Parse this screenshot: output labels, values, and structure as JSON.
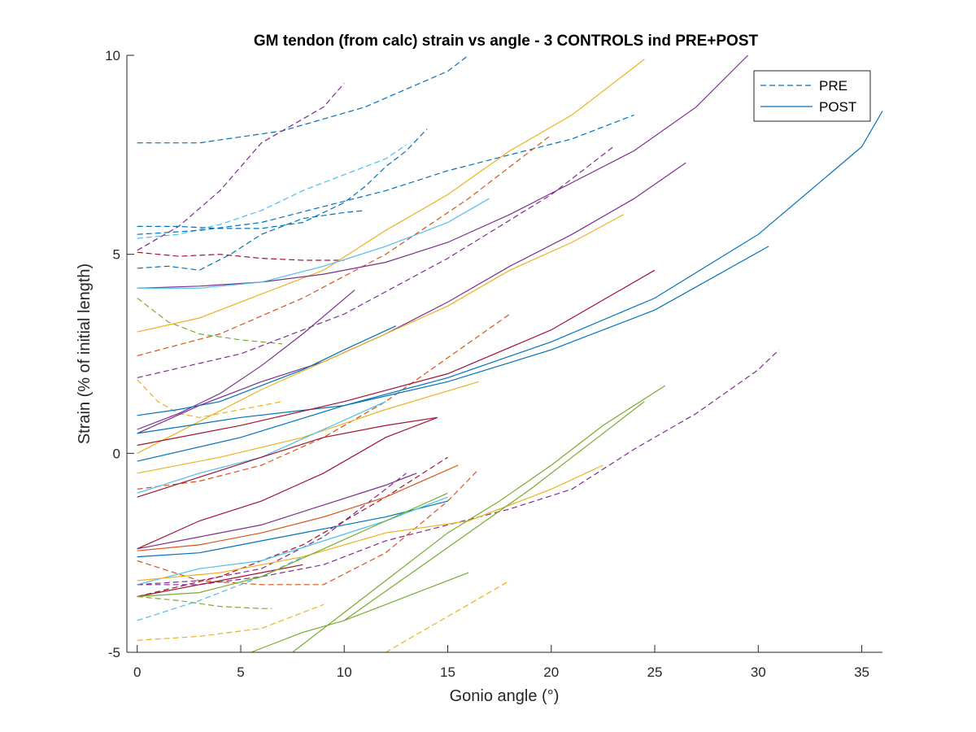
{
  "chart_data": {
    "type": "line",
    "title": "GM tendon (from calc) strain vs angle - 3 CONTROLS ind PRE+POST",
    "xlabel": "Gonio angle (°)",
    "ylabel": "Strain (% of initial length)",
    "xlim": [
      -0.5,
      36
    ],
    "ylim": [
      -5,
      10
    ],
    "xticks": [
      0,
      5,
      10,
      15,
      20,
      25,
      30,
      35
    ],
    "yticks": [
      -5,
      0,
      5,
      10
    ],
    "grid": false,
    "legend": {
      "placement": "top-right",
      "entries": [
        {
          "label": "PRE",
          "style": "dashed"
        },
        {
          "label": "POST",
          "style": "solid"
        }
      ]
    },
    "colors": {
      "blue": "#0072BD",
      "orange": "#D95319",
      "yellow": "#EDB120",
      "purple": "#7E2F8E",
      "green": "#77AC30",
      "cyan": "#4DBEEE",
      "darkred": "#A2142F"
    },
    "series": [
      {
        "style": "dashed",
        "color": "#0072BD",
        "x": [
          0,
          3,
          5,
          7,
          9,
          11,
          13,
          15,
          16
        ],
        "y": [
          7.8,
          7.8,
          7.95,
          8.1,
          8.4,
          8.7,
          9.15,
          9.6,
          10
        ]
      },
      {
        "style": "dashed",
        "color": "#7E2F8E",
        "x": [
          0,
          2,
          4,
          6,
          8,
          9,
          10
        ],
        "y": [
          5.1,
          5.7,
          6.6,
          7.8,
          8.4,
          8.7,
          9.3
        ]
      },
      {
        "style": "dashed",
        "color": "#0072BD",
        "x": [
          0,
          2,
          4,
          6,
          8,
          10,
          11,
          12,
          13,
          14
        ],
        "y": [
          5.7,
          5.7,
          5.65,
          5.65,
          5.8,
          6.3,
          6.7,
          7.2,
          7.6,
          8.15
        ]
      },
      {
        "style": "dashed",
        "color": "#4DBEEE",
        "x": [
          0,
          2,
          4,
          6,
          8,
          10,
          12,
          13
        ],
        "y": [
          5.4,
          5.5,
          5.75,
          6.1,
          6.6,
          7.0,
          7.4,
          7.75
        ]
      },
      {
        "style": "dashed",
        "color": "#0072BD",
        "x": [
          0,
          3,
          6,
          9,
          12,
          15,
          18,
          21,
          24
        ],
        "y": [
          5.5,
          5.6,
          5.8,
          6.2,
          6.6,
          7.1,
          7.5,
          7.9,
          8.5
        ]
      },
      {
        "style": "dashed",
        "color": "#0072BD",
        "x": [
          0,
          1.5,
          3,
          4.5,
          6,
          8,
          10,
          11
        ],
        "y": [
          4.65,
          4.7,
          4.6,
          5.0,
          5.5,
          5.9,
          6.05,
          6.1
        ]
      },
      {
        "style": "dashed",
        "color": "#A2142F",
        "x": [
          0,
          2,
          4,
          6,
          8,
          10
        ],
        "y": [
          5.05,
          4.95,
          5.0,
          4.9,
          4.85,
          4.85
        ]
      },
      {
        "style": "dashed",
        "color": "#D95319",
        "x": [
          0,
          4,
          8,
          12,
          16,
          20
        ],
        "y": [
          2.45,
          3.0,
          3.9,
          5.0,
          6.4,
          8.0
        ]
      },
      {
        "style": "dashed",
        "color": "#7E2F8E",
        "x": [
          0,
          5,
          10,
          15,
          20,
          23
        ],
        "y": [
          1.9,
          2.5,
          3.5,
          4.9,
          6.5,
          7.7
        ]
      },
      {
        "style": "dashed",
        "color": "#77AC30",
        "x": [
          0,
          1.5,
          3,
          5,
          7
        ],
        "y": [
          3.9,
          3.3,
          3.0,
          2.85,
          2.75
        ]
      },
      {
        "style": "dashed",
        "color": "#EDB120",
        "x": [
          0,
          1,
          2,
          3,
          5,
          7
        ],
        "y": [
          1.85,
          1.3,
          1.0,
          0.9,
          1.1,
          1.3
        ]
      },
      {
        "style": "dashed",
        "color": "#D95319",
        "x": [
          0,
          3,
          6,
          9,
          12,
          15,
          18
        ],
        "y": [
          -0.9,
          -0.7,
          -0.3,
          0.4,
          1.3,
          2.4,
          3.5
        ]
      },
      {
        "style": "dashed",
        "color": "#7E2F8E",
        "x": [
          0,
          3,
          6,
          9,
          12,
          13
        ],
        "y": [
          -3.3,
          -3.2,
          -2.9,
          -2.1,
          -0.9,
          -0.5
        ]
      },
      {
        "style": "dashed",
        "color": "#A2142F",
        "x": [
          0,
          4,
          8,
          12,
          15
        ],
        "y": [
          -3.6,
          -3.1,
          -2.3,
          -1.1,
          -0.1
        ]
      },
      {
        "style": "dashed",
        "color": "#D95319",
        "x": [
          0,
          3,
          6,
          9,
          12,
          15,
          16.5
        ],
        "y": [
          -2.7,
          -3.2,
          -3.3,
          -3.3,
          -2.5,
          -1.2,
          -0.4
        ]
      },
      {
        "style": "dashed",
        "color": "#7E2F8E",
        "x": [
          0,
          3,
          6,
          9,
          12,
          15,
          18,
          21,
          24,
          27,
          30,
          31
        ],
        "y": [
          -3.3,
          -3.3,
          -3.1,
          -2.8,
          -2.2,
          -1.8,
          -1.4,
          -0.9,
          0.1,
          1.0,
          2.1,
          2.6
        ]
      },
      {
        "style": "dashed",
        "color": "#77AC30",
        "x": [
          0,
          2,
          4,
          6,
          6.5
        ],
        "y": [
          -3.6,
          -3.7,
          -3.85,
          -3.9,
          -3.9
        ]
      },
      {
        "style": "dashed",
        "color": "#4DBEEE",
        "x": [
          0,
          3,
          6,
          8
        ],
        "y": [
          -4.2,
          -3.7,
          -3.1,
          -2.6
        ]
      },
      {
        "style": "dashed",
        "color": "#EDB120",
        "x": [
          0,
          3,
          6,
          9
        ],
        "y": [
          -4.7,
          -4.6,
          -4.4,
          -3.8
        ]
      },
      {
        "style": "dashed",
        "color": "#EDB120",
        "x": [
          12,
          14,
          16,
          18
        ],
        "y": [
          -5,
          -4.4,
          -3.8,
          -3.2
        ]
      },
      {
        "style": "solid",
        "color": "#EDB120",
        "x": [
          0,
          3,
          6,
          9,
          12,
          15,
          18,
          21,
          24.5
        ],
        "y": [
          3.05,
          3.4,
          4.0,
          4.6,
          5.6,
          6.5,
          7.6,
          8.5,
          9.9
        ]
      },
      {
        "style": "solid",
        "color": "#7E2F8E",
        "x": [
          0,
          3,
          6,
          9,
          12,
          15,
          18,
          21,
          24,
          27,
          29.5
        ],
        "y": [
          4.15,
          4.2,
          4.3,
          4.5,
          4.8,
          5.3,
          6.0,
          6.8,
          7.6,
          8.7,
          10.0
        ]
      },
      {
        "style": "solid",
        "color": "#4DBEEE",
        "x": [
          0,
          3,
          6,
          9,
          12,
          15,
          17
        ],
        "y": [
          4.15,
          4.15,
          4.3,
          4.7,
          5.2,
          5.8,
          6.4
        ]
      },
      {
        "style": "solid",
        "color": "#7E2F8E",
        "x": [
          0,
          3,
          6,
          9,
          12,
          15,
          18,
          21,
          24,
          26.5
        ],
        "y": [
          0.5,
          1.2,
          1.8,
          2.3,
          3.0,
          3.8,
          4.7,
          5.5,
          6.4,
          7.3
        ]
      },
      {
        "style": "solid",
        "color": "#EDB120",
        "x": [
          0,
          3,
          6,
          9,
          12,
          15,
          18,
          21,
          23.5
        ],
        "y": [
          0.0,
          0.8,
          1.6,
          2.3,
          3.0,
          3.7,
          4.6,
          5.3,
          6.0
        ]
      },
      {
        "style": "solid",
        "color": "#7E2F8E",
        "x": [
          0,
          2,
          4,
          6,
          8,
          10.5
        ],
        "y": [
          0.6,
          1.0,
          1.5,
          2.2,
          3.0,
          4.1
        ]
      },
      {
        "style": "solid",
        "color": "#0072BD",
        "x": [
          0,
          2,
          4,
          6,
          8,
          10,
          12.5
        ],
        "y": [
          0.95,
          1.1,
          1.3,
          1.7,
          2.1,
          2.6,
          3.2
        ]
      },
      {
        "style": "solid",
        "color": "#0072BD",
        "x": [
          0,
          5,
          10,
          15,
          20,
          25,
          30,
          35,
          36
        ],
        "y": [
          -0.2,
          0.4,
          1.2,
          1.9,
          2.8,
          3.9,
          5.5,
          7.7,
          8.6
        ]
      },
      {
        "style": "solid",
        "color": "#0072BD",
        "x": [
          0,
          5,
          10,
          15,
          20,
          25,
          30.5
        ],
        "y": [
          0.5,
          0.9,
          1.2,
          1.8,
          2.6,
          3.6,
          5.2
        ]
      },
      {
        "style": "solid",
        "color": "#A2142F",
        "x": [
          0,
          5,
          10,
          15,
          20,
          25
        ],
        "y": [
          0.2,
          0.7,
          1.3,
          2.0,
          3.1,
          4.6
        ]
      },
      {
        "style": "solid",
        "color": "#EDB120",
        "x": [
          0,
          4,
          8,
          12,
          16.5
        ],
        "y": [
          -0.5,
          -0.1,
          0.4,
          1.1,
          1.8
        ]
      },
      {
        "style": "solid",
        "color": "#4DBEEE",
        "x": [
          0,
          3,
          6,
          9,
          12
        ],
        "y": [
          -1.0,
          -0.5,
          -0.1,
          0.6,
          1.3
        ]
      },
      {
        "style": "solid",
        "color": "#A2142F",
        "x": [
          0,
          3,
          6,
          9,
          12,
          14.5
        ],
        "y": [
          -1.1,
          -0.6,
          -0.1,
          0.4,
          0.7,
          0.9
        ]
      },
      {
        "style": "solid",
        "color": "#A2142F",
        "x": [
          0,
          3,
          6,
          9,
          12,
          14.5
        ],
        "y": [
          -2.4,
          -1.7,
          -1.2,
          -0.5,
          0.4,
          0.9
        ]
      },
      {
        "style": "solid",
        "color": "#7E2F8E",
        "x": [
          0,
          3,
          6,
          9,
          12,
          13.5
        ],
        "y": [
          -2.4,
          -2.1,
          -1.8,
          -1.3,
          -0.8,
          -0.5
        ]
      },
      {
        "style": "solid",
        "color": "#D95319",
        "x": [
          0,
          3,
          6,
          9,
          12,
          15.5
        ],
        "y": [
          -2.45,
          -2.3,
          -2.0,
          -1.6,
          -1.1,
          -0.3
        ]
      },
      {
        "style": "solid",
        "color": "#0072BD",
        "x": [
          0,
          3,
          6,
          9,
          12,
          15
        ],
        "y": [
          -2.6,
          -2.5,
          -2.2,
          -1.9,
          -1.6,
          -1.2
        ]
      },
      {
        "style": "solid",
        "color": "#4DBEEE",
        "x": [
          0,
          3,
          6,
          9,
          12,
          15
        ],
        "y": [
          -3.3,
          -2.9,
          -2.7,
          -2.2,
          -1.7,
          -1.1
        ]
      },
      {
        "style": "solid",
        "color": "#EDB120",
        "x": [
          0,
          4,
          8,
          12,
          16,
          20,
          22.5
        ],
        "y": [
          -3.2,
          -3.0,
          -2.6,
          -2.0,
          -1.7,
          -0.9,
          -0.3
        ]
      },
      {
        "style": "solid",
        "color": "#A2142F",
        "x": [
          0,
          3,
          6,
          8
        ],
        "y": [
          -3.6,
          -3.3,
          -3.0,
          -2.8
        ]
      },
      {
        "style": "solid",
        "color": "#77AC30",
        "x": [
          0,
          3,
          6,
          9,
          12,
          15
        ],
        "y": [
          -3.6,
          -3.5,
          -3.1,
          -2.4,
          -1.7,
          -1.0
        ]
      },
      {
        "style": "solid",
        "color": "#77AC30",
        "x": [
          7.5,
          10,
          12.5,
          15,
          17.5,
          20,
          22.5,
          25.5
        ],
        "y": [
          -5,
          -4.0,
          -3.0,
          -2.0,
          -1.2,
          -0.3,
          0.7,
          1.7
        ]
      },
      {
        "style": "solid",
        "color": "#77AC30",
        "x": [
          5.5,
          8,
          10,
          12,
          14,
          16
        ],
        "y": [
          -5,
          -4.5,
          -4.2,
          -3.8,
          -3.4,
          -3.0
        ]
      },
      {
        "style": "solid",
        "color": "#77AC30",
        "x": [
          10,
          13,
          16,
          19,
          22,
          24.5
        ],
        "y": [
          -4.2,
          -3.1,
          -2.0,
          -0.9,
          0.3,
          1.3
        ]
      }
    ]
  }
}
